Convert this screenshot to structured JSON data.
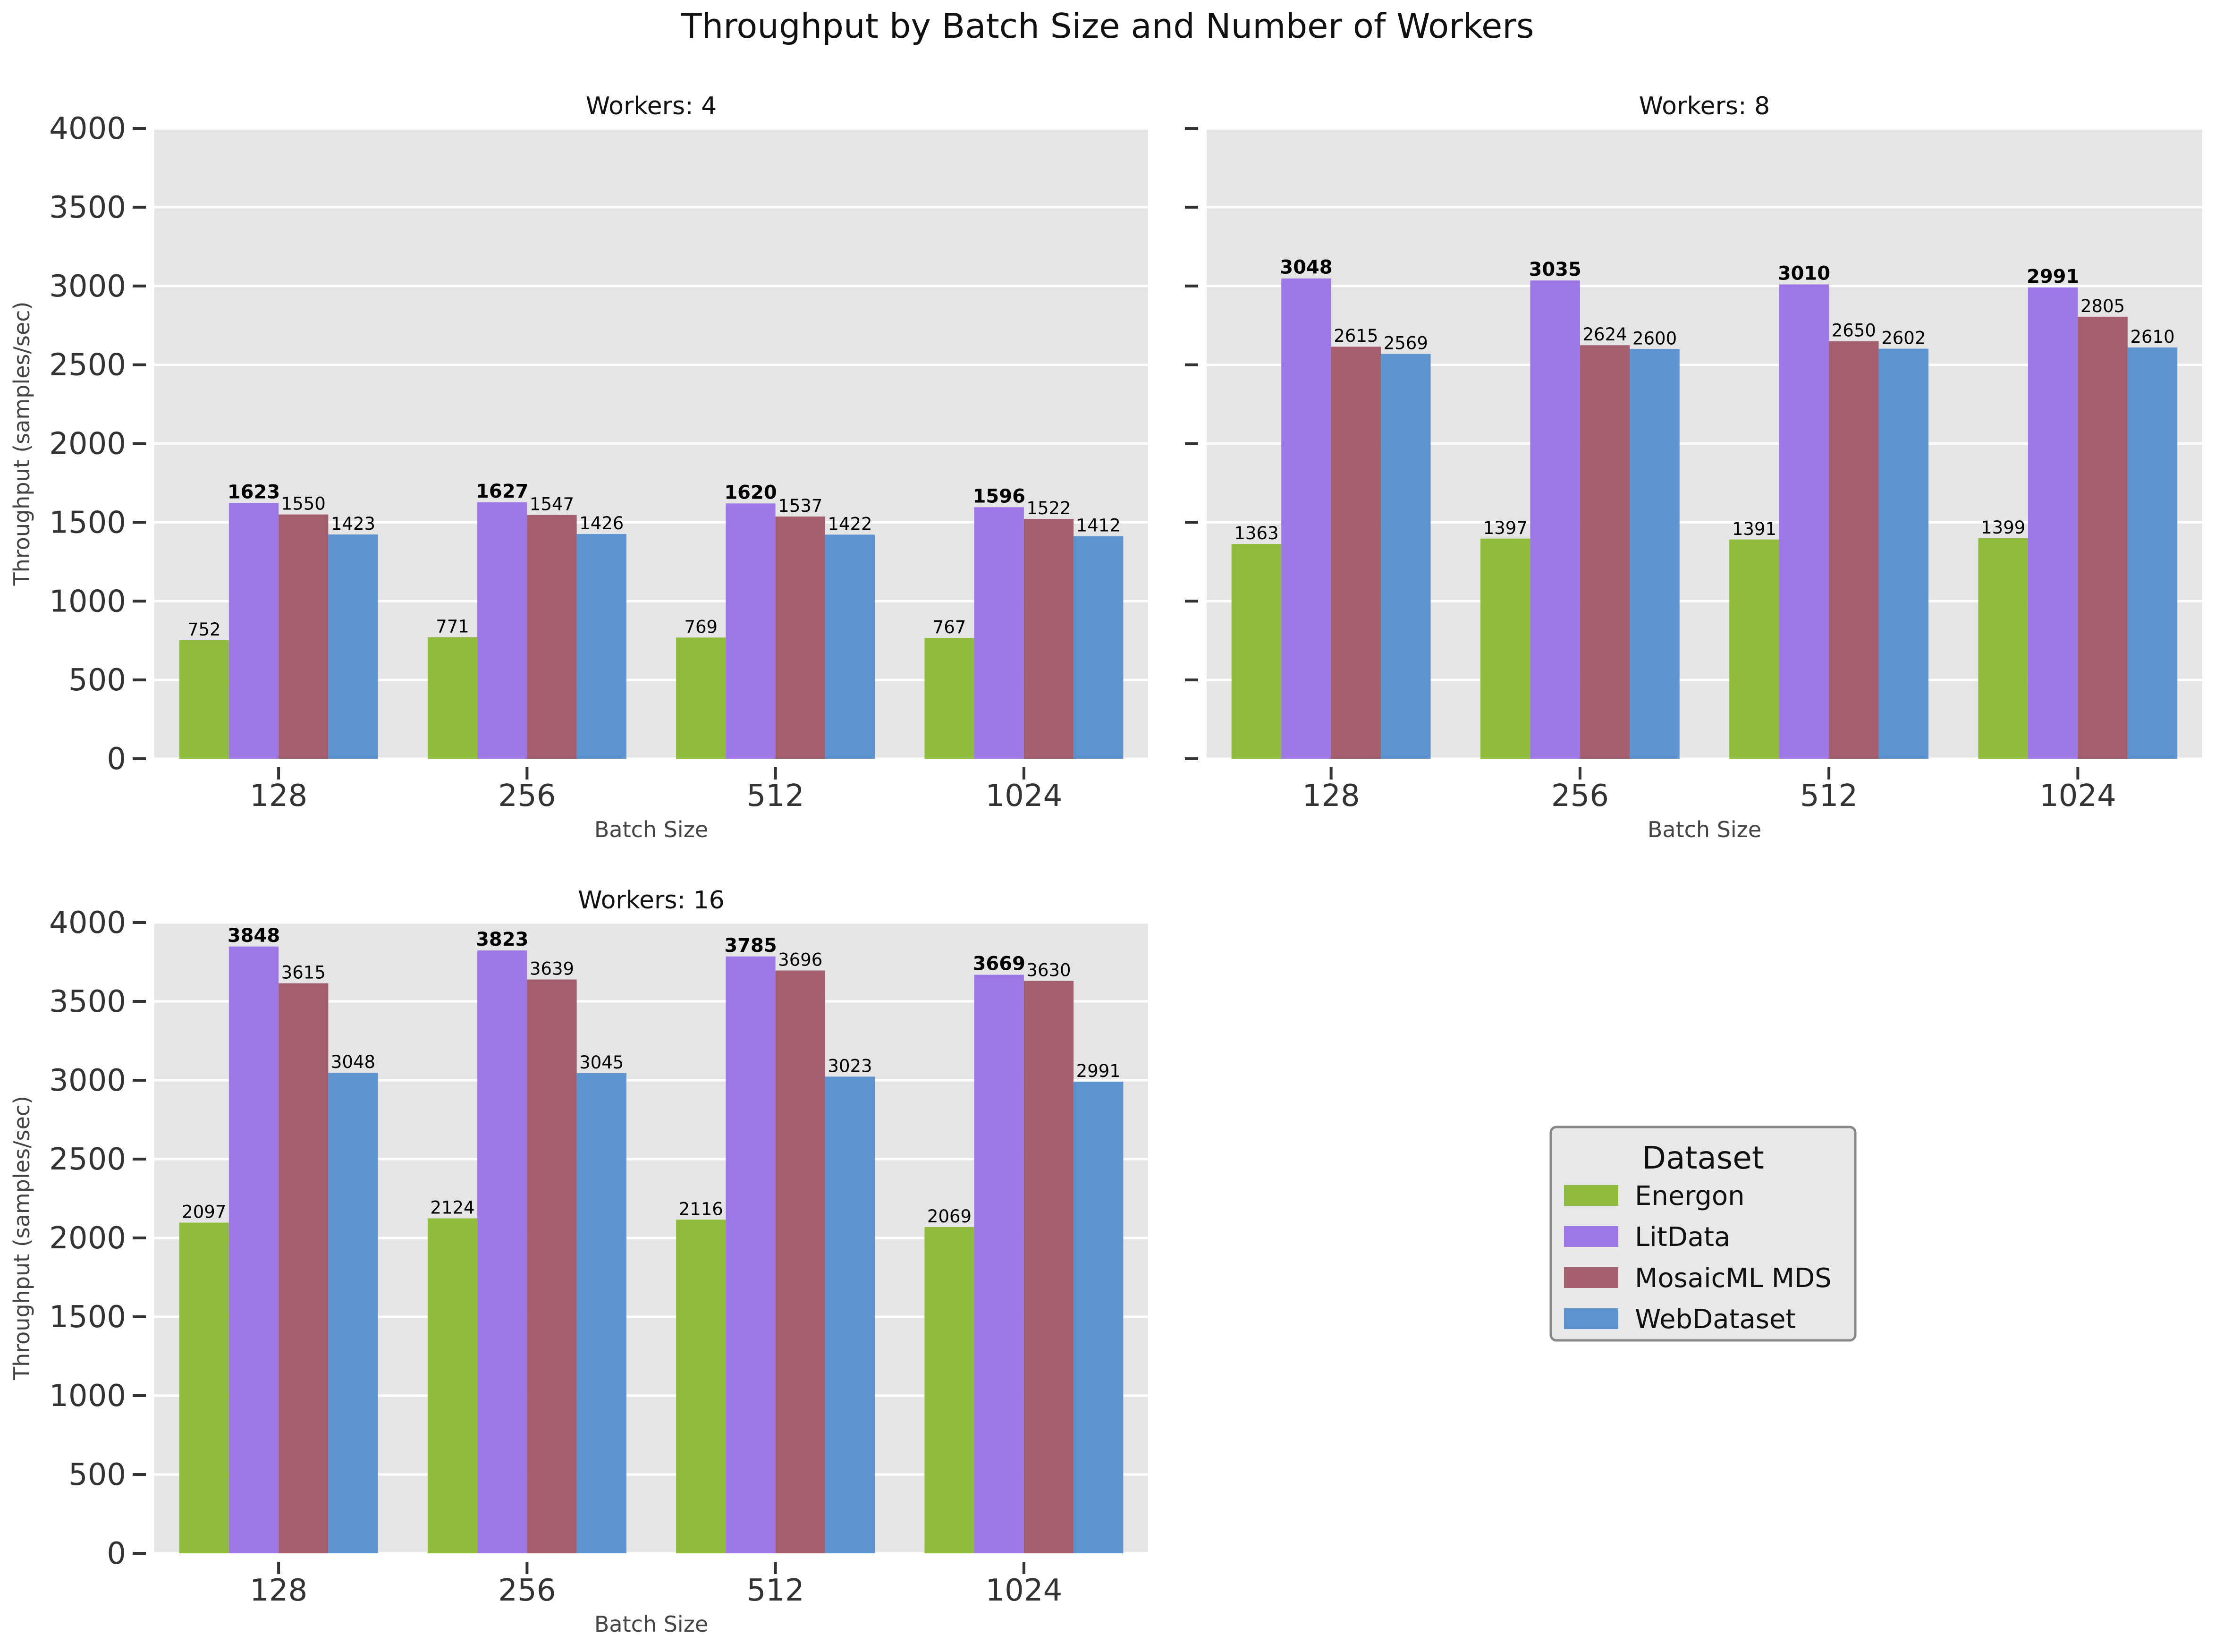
{
  "chart_data": {
    "type": "bar",
    "title": "Throughput by Batch Size and Number of Workers",
    "xlabel": "Batch Size",
    "ylabel": "Throughput (samples/sec)",
    "ylim": [
      0,
      4000
    ],
    "yticks": [
      "0",
      "500",
      "1000",
      "1500",
      "2000",
      "2500",
      "3000",
      "3500",
      "4000"
    ],
    "categories": [
      "128",
      "256",
      "512",
      "1024"
    ],
    "legend": {
      "title": "Dataset",
      "position": "center-right"
    },
    "colors": {
      "Energon": "#8fbb3c",
      "LitData": "#9d77e6",
      "MosaicML MDS": "#a35f6d",
      "WebDataset": "#5d93d0"
    },
    "panels": [
      {
        "title": "Workers: 4",
        "series": [
          {
            "name": "Energon",
            "values": [
              752,
              771,
              769,
              767
            ]
          },
          {
            "name": "LitData",
            "values": [
              1623,
              1627,
              1620,
              1596
            ]
          },
          {
            "name": "MosaicML MDS",
            "values": [
              1550,
              1547,
              1537,
              1522
            ]
          },
          {
            "name": "WebDataset",
            "values": [
              1423,
              1426,
              1422,
              1412
            ]
          }
        ]
      },
      {
        "title": "Workers: 8",
        "series": [
          {
            "name": "Energon",
            "values": [
              1363,
              1397,
              1391,
              1399
            ]
          },
          {
            "name": "LitData",
            "values": [
              3048,
              3035,
              3010,
              2991
            ]
          },
          {
            "name": "MosaicML MDS",
            "values": [
              2615,
              2624,
              2650,
              2805
            ]
          },
          {
            "name": "WebDataset",
            "values": [
              2569,
              2600,
              2602,
              2610
            ]
          }
        ]
      },
      {
        "title": "Workers: 16",
        "series": [
          {
            "name": "Energon",
            "values": [
              2097,
              2124,
              2116,
              2069
            ]
          },
          {
            "name": "LitData",
            "values": [
              3848,
              3823,
              3785,
              3669
            ]
          },
          {
            "name": "MosaicML MDS",
            "values": [
              3615,
              3639,
              3696,
              3630
            ]
          },
          {
            "name": "WebDataset",
            "values": [
              3048,
              3045,
              3023,
              2991
            ]
          }
        ]
      }
    ]
  }
}
